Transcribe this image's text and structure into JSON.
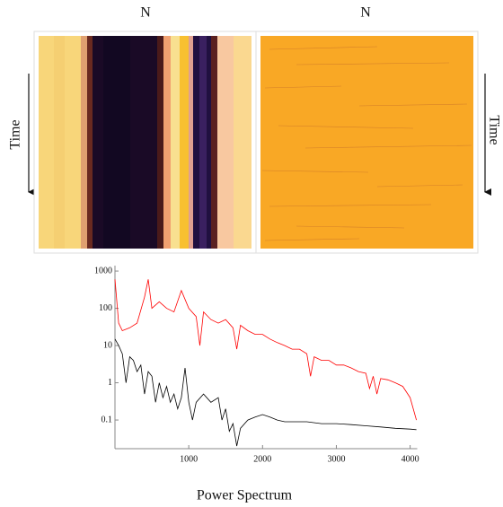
{
  "panels": [
    {
      "xlabel": "N",
      "ylabel": "Time"
    },
    {
      "xlabel": "N",
      "ylabel": "Time"
    }
  ],
  "chart_data": {
    "type": "line",
    "title": "Power Spectrum",
    "log_y": true,
    "xlim": [
      0,
      4096
    ],
    "ylim": [
      0.017,
      1400
    ],
    "xticks": [
      1000,
      2000,
      3000,
      4000
    ],
    "yticks": [
      0.1,
      1,
      10,
      100,
      1000
    ],
    "series": [
      {
        "color": "#ff0000",
        "x": [
          0,
          50,
          100,
          200,
          300,
          400,
          450,
          500,
          600,
          700,
          800,
          900,
          1000,
          1100,
          1150,
          1200,
          1300,
          1400,
          1500,
          1600,
          1650,
          1700,
          1800,
          1900,
          2000,
          2100,
          2200,
          2300,
          2400,
          2500,
          2600,
          2650,
          2700,
          2800,
          2900,
          3000,
          3100,
          3200,
          3300,
          3400,
          3450,
          3500,
          3550,
          3600,
          3700,
          3800,
          3900,
          4000,
          4085
        ],
        "values": [
          600,
          40,
          25,
          30,
          40,
          200,
          600,
          100,
          150,
          100,
          80,
          300,
          100,
          60,
          10,
          80,
          50,
          40,
          50,
          30,
          8,
          35,
          25,
          20,
          20,
          15,
          12,
          10,
          8,
          8,
          6,
          1.5,
          5,
          4,
          4,
          3,
          3,
          2.5,
          2,
          1.8,
          0.7,
          1.5,
          0.5,
          1.3,
          1.2,
          1,
          0.8,
          0.4,
          0.1
        ]
      },
      {
        "color": "#000000",
        "x": [
          0,
          50,
          100,
          150,
          200,
          250,
          300,
          350,
          400,
          450,
          500,
          550,
          600,
          650,
          700,
          750,
          800,
          850,
          900,
          950,
          1000,
          1050,
          1100,
          1200,
          1300,
          1400,
          1450,
          1500,
          1550,
          1600,
          1650,
          1700,
          1800,
          1900,
          2000,
          2100,
          2200,
          2300,
          2400,
          2600,
          2800,
          3000,
          3200,
          3400,
          3600,
          3800,
          4000,
          4085
        ],
        "values": [
          15,
          10,
          6,
          1,
          5,
          4,
          2,
          3,
          0.5,
          2,
          1.5,
          0.3,
          1,
          0.4,
          0.8,
          0.3,
          0.5,
          0.2,
          0.4,
          2.5,
          0.3,
          0.1,
          0.3,
          0.5,
          0.3,
          0.4,
          0.1,
          0.2,
          0.05,
          0.08,
          0.02,
          0.06,
          0.1,
          0.12,
          0.14,
          0.12,
          0.1,
          0.09,
          0.09,
          0.09,
          0.08,
          0.08,
          0.075,
          0.07,
          0.065,
          0.06,
          0.057,
          0.055
        ]
      }
    ]
  }
}
